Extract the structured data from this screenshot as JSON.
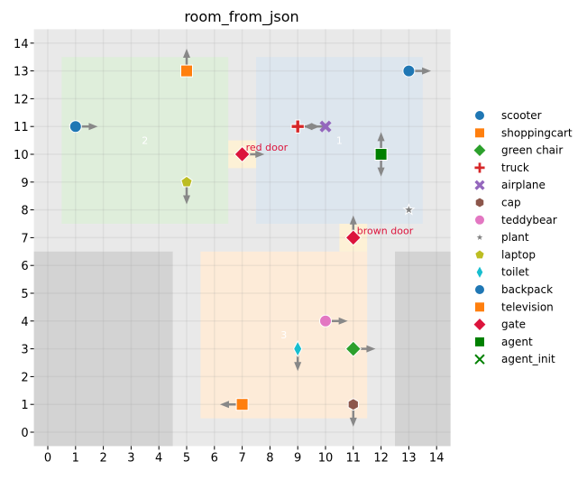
{
  "chart_data": {
    "type": "scatter",
    "title": "room_from_json",
    "xlim": [
      -0.5,
      14.5
    ],
    "ylim": [
      -0.5,
      14.5
    ],
    "xticks": [
      0,
      1,
      2,
      3,
      4,
      5,
      6,
      7,
      8,
      9,
      10,
      11,
      12,
      13,
      14
    ],
    "yticks": [
      0,
      1,
      2,
      3,
      4,
      5,
      6,
      7,
      8,
      9,
      10,
      11,
      12,
      13,
      14
    ],
    "grid": true,
    "legend_position": "right",
    "background": "#e9e9e9",
    "rooms": [
      {
        "label": "2",
        "x": [
          0.5,
          6.5
        ],
        "y": [
          7.5,
          13.5
        ],
        "color": "#dfeedb",
        "label_at": [
          3.5,
          10.5
        ]
      },
      {
        "label": "1",
        "x": [
          7.5,
          13.5
        ],
        "y": [
          7.5,
          13.5
        ],
        "color": "#dde6ee",
        "label_at": [
          10.5,
          10.5
        ]
      },
      {
        "label": "3",
        "x": [
          5.5,
          11.5
        ],
        "y": [
          0.5,
          6.5
        ],
        "color": "#fdebd8",
        "label_at": [
          8.5,
          3.5
        ]
      }
    ],
    "walls": [
      {
        "x": [
          -0.5,
          4.5
        ],
        "y": [
          -0.5,
          6.5
        ],
        "color": "#d3d3d3"
      },
      {
        "x": [
          12.5,
          14.5
        ],
        "y": [
          -0.5,
          6.5
        ],
        "color": "#d3d3d3"
      }
    ],
    "doors": [
      {
        "x": [
          6.5,
          7.5
        ],
        "y": [
          9.5,
          10.5
        ],
        "color": "#fdf1d6"
      },
      {
        "x": [
          10.5,
          11.5
        ],
        "y": [
          6.5,
          7.5
        ],
        "color": "#fdf1d6"
      }
    ],
    "series": [
      {
        "name": "scooter",
        "marker": "circle",
        "color": "#1f77b4",
        "points": [
          {
            "x": 1,
            "y": 11,
            "dir": "right"
          }
        ]
      },
      {
        "name": "shoppingcart",
        "marker": "square",
        "color": "#ff7f0e",
        "points": [
          {
            "x": 5,
            "y": 13,
            "dir": "up"
          }
        ]
      },
      {
        "name": "green chair",
        "marker": "diamond",
        "color": "#2ca02c",
        "points": [
          {
            "x": 11,
            "y": 3,
            "dir": "right"
          }
        ]
      },
      {
        "name": "truck",
        "marker": "plus",
        "color": "#d62728",
        "points": [
          {
            "x": 9,
            "y": 11,
            "dir": "right"
          }
        ]
      },
      {
        "name": "airplane",
        "marker": "x",
        "color": "#9467bd",
        "points": [
          {
            "x": 10,
            "y": 11,
            "dir": "left"
          }
        ]
      },
      {
        "name": "cap",
        "marker": "hexagon",
        "color": "#8c564b",
        "points": [
          {
            "x": 11,
            "y": 1,
            "dir": "down"
          }
        ]
      },
      {
        "name": "teddybear",
        "marker": "circle",
        "color": "#e377c2",
        "points": [
          {
            "x": 10,
            "y": 4,
            "dir": "right"
          }
        ]
      },
      {
        "name": "plant",
        "marker": "star",
        "color": "#7f7f7f",
        "points": [
          {
            "x": 13,
            "y": 8,
            "dir": ""
          }
        ]
      },
      {
        "name": "laptop",
        "marker": "pentagon",
        "color": "#bcbd22",
        "points": [
          {
            "x": 5,
            "y": 9,
            "dir": "down"
          }
        ]
      },
      {
        "name": "toilet",
        "marker": "thindiamond",
        "color": "#17becf",
        "points": [
          {
            "x": 9,
            "y": 3,
            "dir": "down"
          }
        ]
      },
      {
        "name": "backpack",
        "marker": "circle",
        "color": "#1f77b4",
        "points": [
          {
            "x": 13,
            "y": 13,
            "dir": "right"
          }
        ]
      },
      {
        "name": "television",
        "marker": "square",
        "color": "#ff7f0e",
        "points": [
          {
            "x": 7,
            "y": 1,
            "dir": "left"
          }
        ]
      },
      {
        "name": "gate",
        "marker": "diamond",
        "color": "#dc143c",
        "points": [
          {
            "x": 7,
            "y": 10,
            "dir": "right",
            "label": "red door"
          },
          {
            "x": 11,
            "y": 7,
            "dir": "up",
            "label": "brown door"
          }
        ]
      },
      {
        "name": "agent",
        "marker": "square",
        "color": "#008000",
        "points": [
          {
            "x": 12,
            "y": 10,
            "dir": "up"
          },
          {
            "x": 12,
            "y": 10,
            "dir": "down"
          }
        ]
      },
      {
        "name": "agent_init",
        "marker": "xthin",
        "color": "#008000",
        "points": []
      }
    ]
  }
}
